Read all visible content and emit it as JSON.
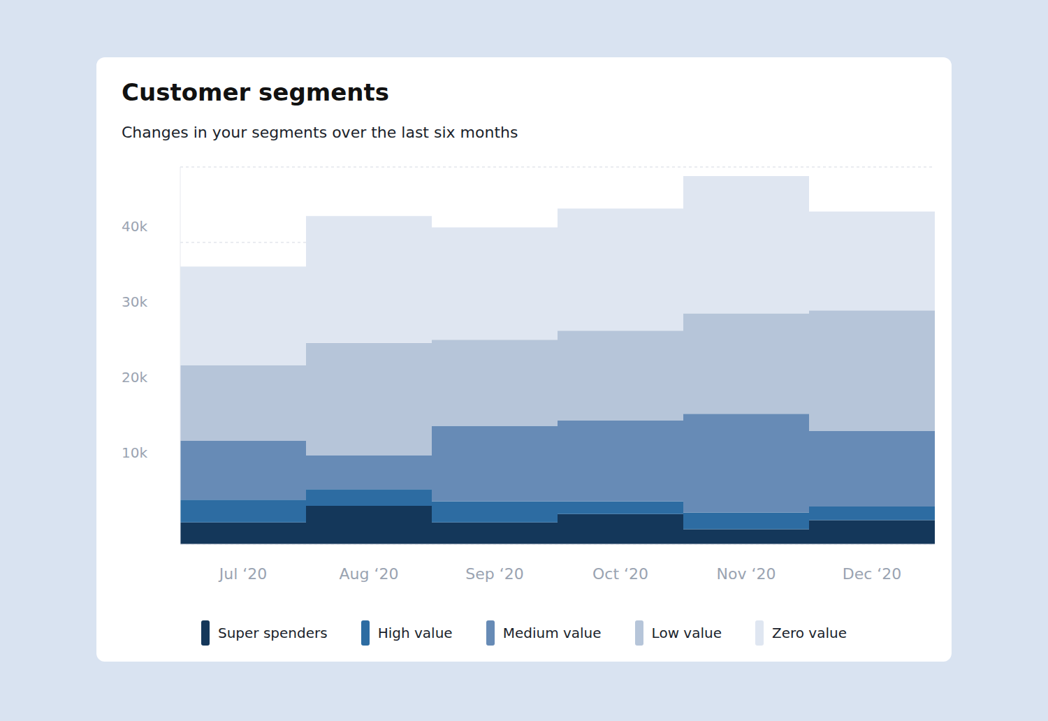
{
  "chart_data": {
    "type": "bar",
    "title": "Customer segments",
    "subtitle": "Changes in your segments over the last six months",
    "categories": [
      "Jul ‘20",
      "Aug ‘20",
      "Sep ‘20",
      "Oct ‘20",
      "Nov ‘20",
      "Dec ‘20"
    ],
    "series": [
      {
        "name": "Super spenders",
        "color": "#14375a",
        "values": [
          2900,
          5100,
          2900,
          4000,
          2000,
          3200
        ]
      },
      {
        "name": "High value",
        "color": "#2d6ca2",
        "values": [
          3000,
          2200,
          2800,
          1700,
          2200,
          1800
        ]
      },
      {
        "name": "Medium value",
        "color": "#678bb6",
        "values": [
          7800,
          4500,
          10000,
          10700,
          13100,
          10000
        ]
      },
      {
        "name": "Low value",
        "color": "#b6c5d9",
        "values": [
          10000,
          14900,
          11400,
          11900,
          13300,
          16000
        ]
      },
      {
        "name": "Zero value",
        "color": "#dfe6f1",
        "values": [
          13100,
          16800,
          14900,
          16200,
          18200,
          13100
        ]
      }
    ],
    "ylim": [
      0,
      50000
    ],
    "yticks": [
      {
        "value": 10000,
        "label": "10k"
      },
      {
        "value": 20000,
        "label": "20k"
      },
      {
        "value": 30000,
        "label": "30k"
      },
      {
        "value": 40000,
        "label": "40k"
      }
    ],
    "stacked": true,
    "grid": true,
    "legend": "bottom"
  }
}
